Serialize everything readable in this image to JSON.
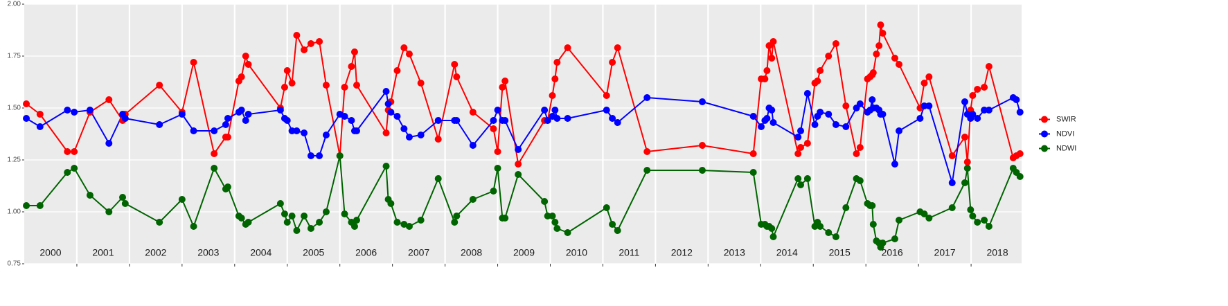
{
  "chart_data": {
    "type": "line",
    "x": [
      2000.04,
      2000.3,
      2000.82,
      2000.95,
      2001.25,
      2001.61,
      2001.87,
      2001.92,
      2002.57,
      2003.0,
      2003.22,
      2003.61,
      2003.83,
      2003.87,
      2004.08,
      2004.13,
      2004.21,
      2004.26,
      2004.87,
      2004.95,
      2005.0,
      2005.09,
      2005.18,
      2005.32,
      2005.45,
      2005.61,
      2005.74,
      2006.0,
      2006.09,
      2006.22,
      2006.28,
      2006.32,
      2006.88,
      2006.92,
      2006.97,
      2007.09,
      2007.22,
      2007.32,
      2007.54,
      2007.87,
      2008.18,
      2008.22,
      2008.53,
      2008.92,
      2009.0,
      2009.09,
      2009.14,
      2009.39,
      2009.89,
      2009.95,
      2010.04,
      2010.09,
      2010.13,
      2010.33,
      2011.07,
      2011.18,
      2011.28,
      2011.84,
      2012.89,
      2013.86,
      2014.01,
      2014.08,
      2014.12,
      2014.16,
      2014.21,
      2014.24,
      2014.71,
      2014.76,
      2014.89,
      2015.03,
      2015.08,
      2015.13,
      2015.29,
      2015.43,
      2015.62,
      2015.82,
      2015.89,
      2016.03,
      2016.08,
      2016.12,
      2016.14,
      2016.2,
      2016.25,
      2016.28,
      2016.32,
      2016.55,
      2016.63,
      2017.03,
      2017.11,
      2017.2,
      2017.64,
      2017.88,
      2017.93,
      2017.99,
      2018.03,
      2018.12,
      2018.25,
      2018.34,
      2018.8,
      2018.86,
      2018.93
    ],
    "series": [
      {
        "name": "SWIR",
        "color": "#ff0000",
        "values": [
          1.52,
          1.47,
          1.29,
          1.29,
          1.48,
          1.54,
          1.44,
          1.47,
          1.61,
          1.48,
          1.72,
          1.28,
          1.36,
          1.36,
          1.63,
          1.65,
          1.75,
          1.71,
          1.5,
          1.6,
          1.68,
          1.62,
          1.85,
          1.78,
          1.81,
          1.82,
          1.61,
          1.27,
          1.6,
          1.7,
          1.77,
          1.61,
          1.38,
          1.49,
          1.53,
          1.68,
          1.79,
          1.76,
          1.62,
          1.35,
          1.71,
          1.65,
          1.48,
          1.4,
          1.29,
          1.6,
          1.63,
          1.23,
          1.44,
          1.44,
          1.56,
          1.64,
          1.72,
          1.79,
          1.56,
          1.72,
          1.79,
          1.29,
          1.32,
          1.28,
          1.64,
          1.64,
          1.68,
          1.8,
          1.74,
          1.82,
          1.28,
          1.31,
          1.33,
          1.62,
          1.63,
          1.68,
          1.75,
          1.81,
          1.51,
          1.28,
          1.31,
          1.64,
          1.65,
          1.66,
          1.67,
          1.76,
          1.8,
          1.9,
          1.86,
          1.74,
          1.71,
          1.5,
          1.62,
          1.65,
          1.27,
          1.36,
          1.24,
          1.49,
          1.56,
          1.59,
          1.6,
          1.7,
          1.26,
          1.27,
          1.28
        ]
      },
      {
        "name": "NDVI",
        "color": "#0000ff",
        "values": [
          1.45,
          1.41,
          1.49,
          1.48,
          1.49,
          1.33,
          1.47,
          1.45,
          1.42,
          1.47,
          1.39,
          1.39,
          1.42,
          1.45,
          1.48,
          1.49,
          1.44,
          1.47,
          1.49,
          1.45,
          1.44,
          1.39,
          1.39,
          1.38,
          1.27,
          1.27,
          1.37,
          1.47,
          1.46,
          1.44,
          1.39,
          1.39,
          1.58,
          1.52,
          1.48,
          1.46,
          1.4,
          1.36,
          1.37,
          1.44,
          1.44,
          1.44,
          1.32,
          1.44,
          1.49,
          1.44,
          1.44,
          1.3,
          1.49,
          1.44,
          1.46,
          1.49,
          1.45,
          1.45,
          1.49,
          1.45,
          1.43,
          1.55,
          1.53,
          1.46,
          1.41,
          1.44,
          1.45,
          1.5,
          1.49,
          1.43,
          1.36,
          1.39,
          1.57,
          1.42,
          1.46,
          1.48,
          1.47,
          1.42,
          1.41,
          1.5,
          1.52,
          1.48,
          1.49,
          1.54,
          1.5,
          1.5,
          1.49,
          1.47,
          1.47,
          1.23,
          1.39,
          1.45,
          1.51,
          1.51,
          1.14,
          1.53,
          1.47,
          1.45,
          1.47,
          1.45,
          1.49,
          1.49,
          1.55,
          1.54,
          1.48
        ]
      },
      {
        "name": "NDWI",
        "color": "#006400",
        "values": [
          1.03,
          1.03,
          1.19,
          1.21,
          1.08,
          1.0,
          1.07,
          1.04,
          0.95,
          1.06,
          0.93,
          1.21,
          1.11,
          1.12,
          0.98,
          0.97,
          0.94,
          0.95,
          1.04,
          0.99,
          0.95,
          0.98,
          0.91,
          0.98,
          0.92,
          0.95,
          1.0,
          1.27,
          0.99,
          0.95,
          0.93,
          0.96,
          1.22,
          1.06,
          1.04,
          0.95,
          0.94,
          0.93,
          0.96,
          1.16,
          0.95,
          0.98,
          1.06,
          1.1,
          1.21,
          0.97,
          0.97,
          1.18,
          1.05,
          0.98,
          0.98,
          0.95,
          0.92,
          0.9,
          1.02,
          0.94,
          0.91,
          1.2,
          1.2,
          1.19,
          0.94,
          0.94,
          0.93,
          0.93,
          0.92,
          0.88,
          1.16,
          1.13,
          1.16,
          0.93,
          0.95,
          0.93,
          0.9,
          0.88,
          1.02,
          1.16,
          1.15,
          1.04,
          1.03,
          1.03,
          0.94,
          0.86,
          0.85,
          0.83,
          0.85,
          0.87,
          0.96,
          1.0,
          0.99,
          0.97,
          1.02,
          1.14,
          1.21,
          1.01,
          0.98,
          0.95,
          0.96,
          0.93,
          1.21,
          1.19,
          1.17
        ]
      }
    ],
    "xlim": [
      2000.0,
      2018.96
    ],
    "xticks": [
      {
        "value": 2000.5,
        "label": "2000"
      },
      {
        "value": 2001.5,
        "label": "2001"
      },
      {
        "value": 2002.5,
        "label": "2002"
      },
      {
        "value": 2003.5,
        "label": "2003"
      },
      {
        "value": 2004.5,
        "label": "2004"
      },
      {
        "value": 2005.5,
        "label": "2005"
      },
      {
        "value": 2006.5,
        "label": "2006"
      },
      {
        "value": 2007.5,
        "label": "2007"
      },
      {
        "value": 2008.5,
        "label": "2008"
      },
      {
        "value": 2009.5,
        "label": "2009"
      },
      {
        "value": 2010.5,
        "label": "2010"
      },
      {
        "value": 2011.5,
        "label": "2011"
      },
      {
        "value": 2012.5,
        "label": "2012"
      },
      {
        "value": 2013.5,
        "label": "2013"
      },
      {
        "value": 2014.5,
        "label": "2014"
      },
      {
        "value": 2015.5,
        "label": "2015"
      },
      {
        "value": 2016.5,
        "label": "2016"
      },
      {
        "value": 2017.5,
        "label": "2017"
      },
      {
        "value": 2018.5,
        "label": "2018"
      }
    ],
    "ylim": [
      0.75,
      2.0
    ],
    "yticks": [
      {
        "value": 0.75,
        "label": "0.75"
      },
      {
        "value": 1.0,
        "label": "1.00"
      },
      {
        "value": 1.25,
        "label": "1.25"
      },
      {
        "value": 1.5,
        "label": "1.50"
      },
      {
        "value": 1.75,
        "label": "1.75"
      },
      {
        "value": 2.0,
        "label": "2.00"
      }
    ],
    "grid": true,
    "legend": "right"
  }
}
